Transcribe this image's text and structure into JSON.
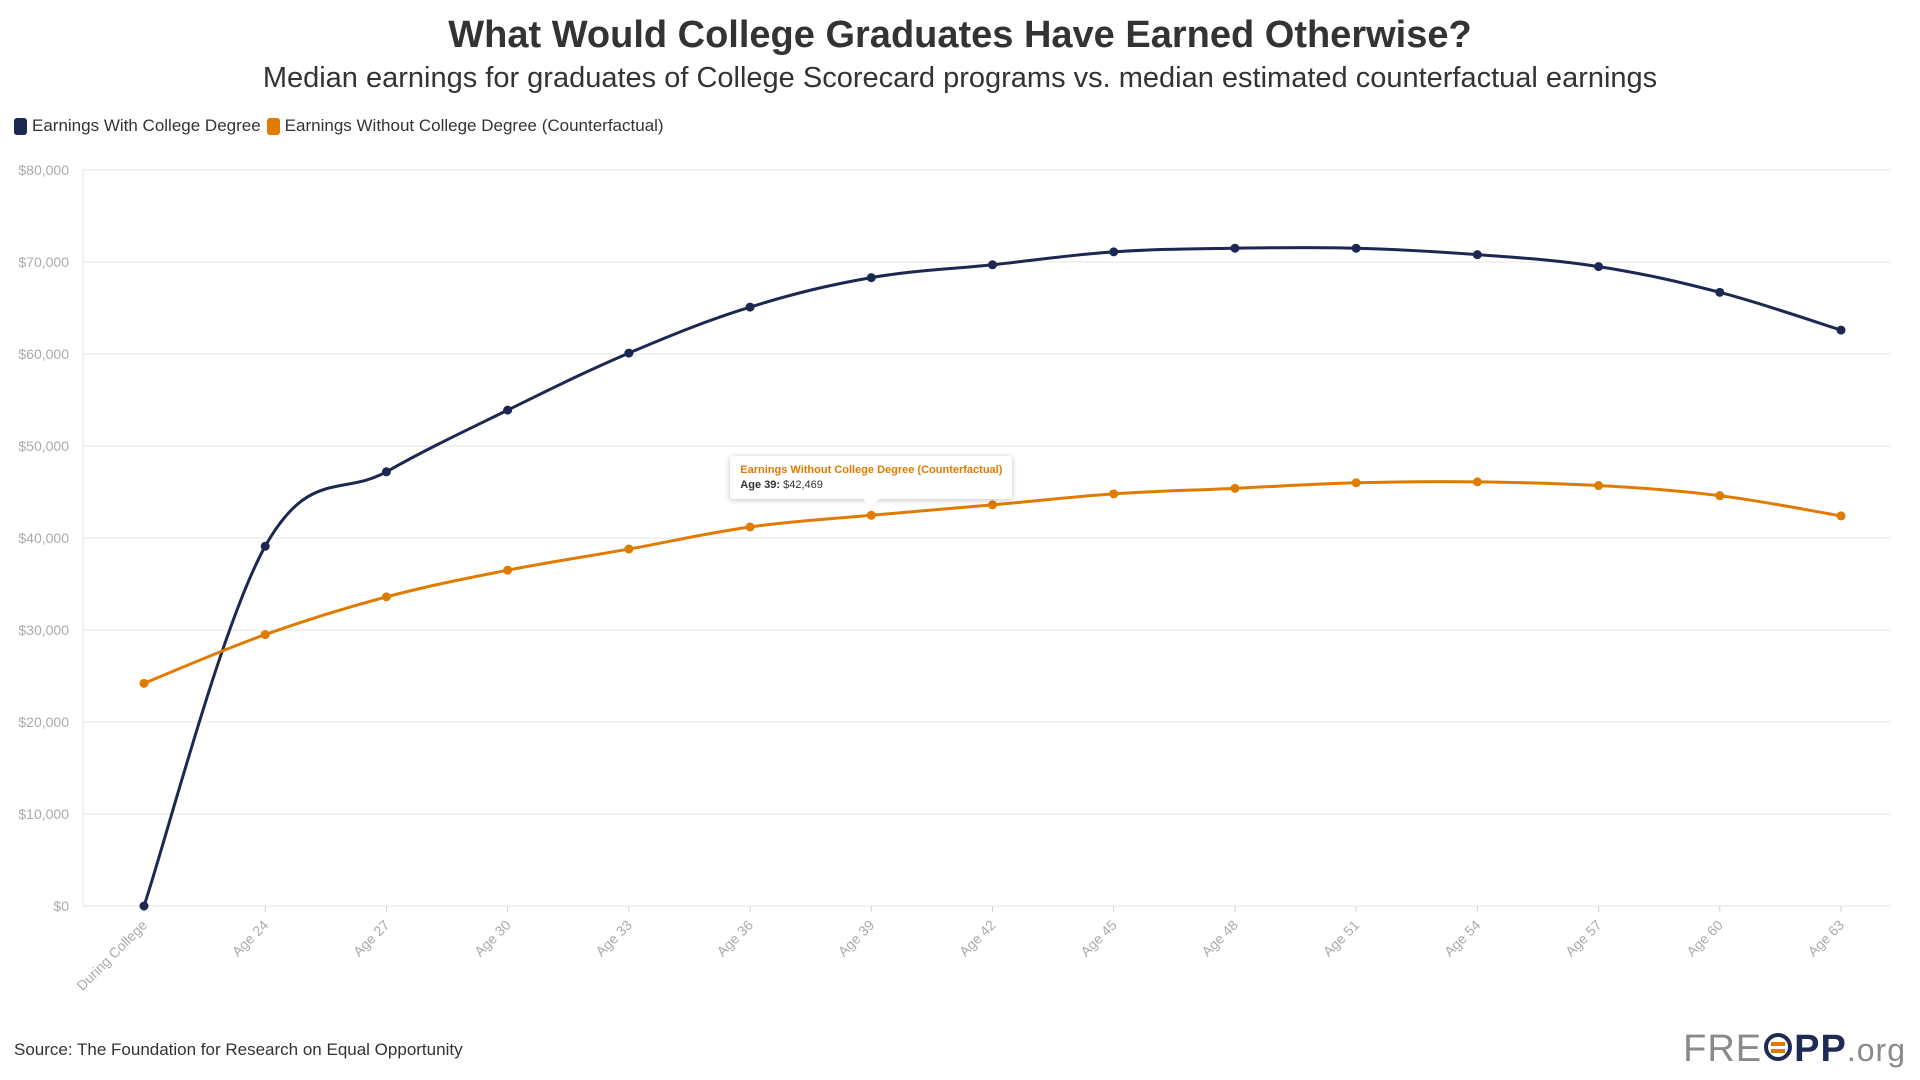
{
  "chart_data": {
    "type": "line",
    "title": "What Would College Graduates Have Earned Otherwise?",
    "subtitle": "Median earnings for graduates of College Scorecard programs vs. median estimated counterfactual earnings",
    "categories": [
      "During College",
      "Age 24",
      "Age 27",
      "Age 30",
      "Age 33",
      "Age 36",
      "Age 39",
      "Age 42",
      "Age 45",
      "Age 48",
      "Age 51",
      "Age 54",
      "Age 57",
      "Age 60",
      "Age 63"
    ],
    "series": [
      {
        "name": "Earnings With College Degree",
        "color": "#1c2752",
        "values": [
          0,
          39100,
          47200,
          53900,
          60100,
          65100,
          68300,
          69700,
          71100,
          71500,
          71500,
          70800,
          69500,
          66700,
          62600
        ]
      },
      {
        "name": "Earnings Without College Degree (Counterfactual)",
        "color": "#e07b00",
        "values": [
          24200,
          29500,
          33600,
          36500,
          38800,
          41200,
          42469,
          43600,
          44800,
          45400,
          46000,
          46100,
          45700,
          44600,
          42400
        ]
      }
    ],
    "yticks": [
      "$0",
      "$10,000",
      "$20,000",
      "$30,000",
      "$40,000",
      "$50,000",
      "$60,000",
      "$70,000",
      "$80,000"
    ],
    "ylim": [
      0,
      80000
    ],
    "xlabel": "",
    "ylabel": "",
    "grid": true,
    "legend_position": "top-left",
    "tooltip": {
      "series": "Earnings Without College Degree (Counterfactual)",
      "category": "Age 39:",
      "value": "$42,469"
    }
  },
  "source": "Source: The Foundation for Research on Equal Opportunity",
  "logo": {
    "free": "FRE",
    "opp": "PP",
    "org": ".org"
  }
}
